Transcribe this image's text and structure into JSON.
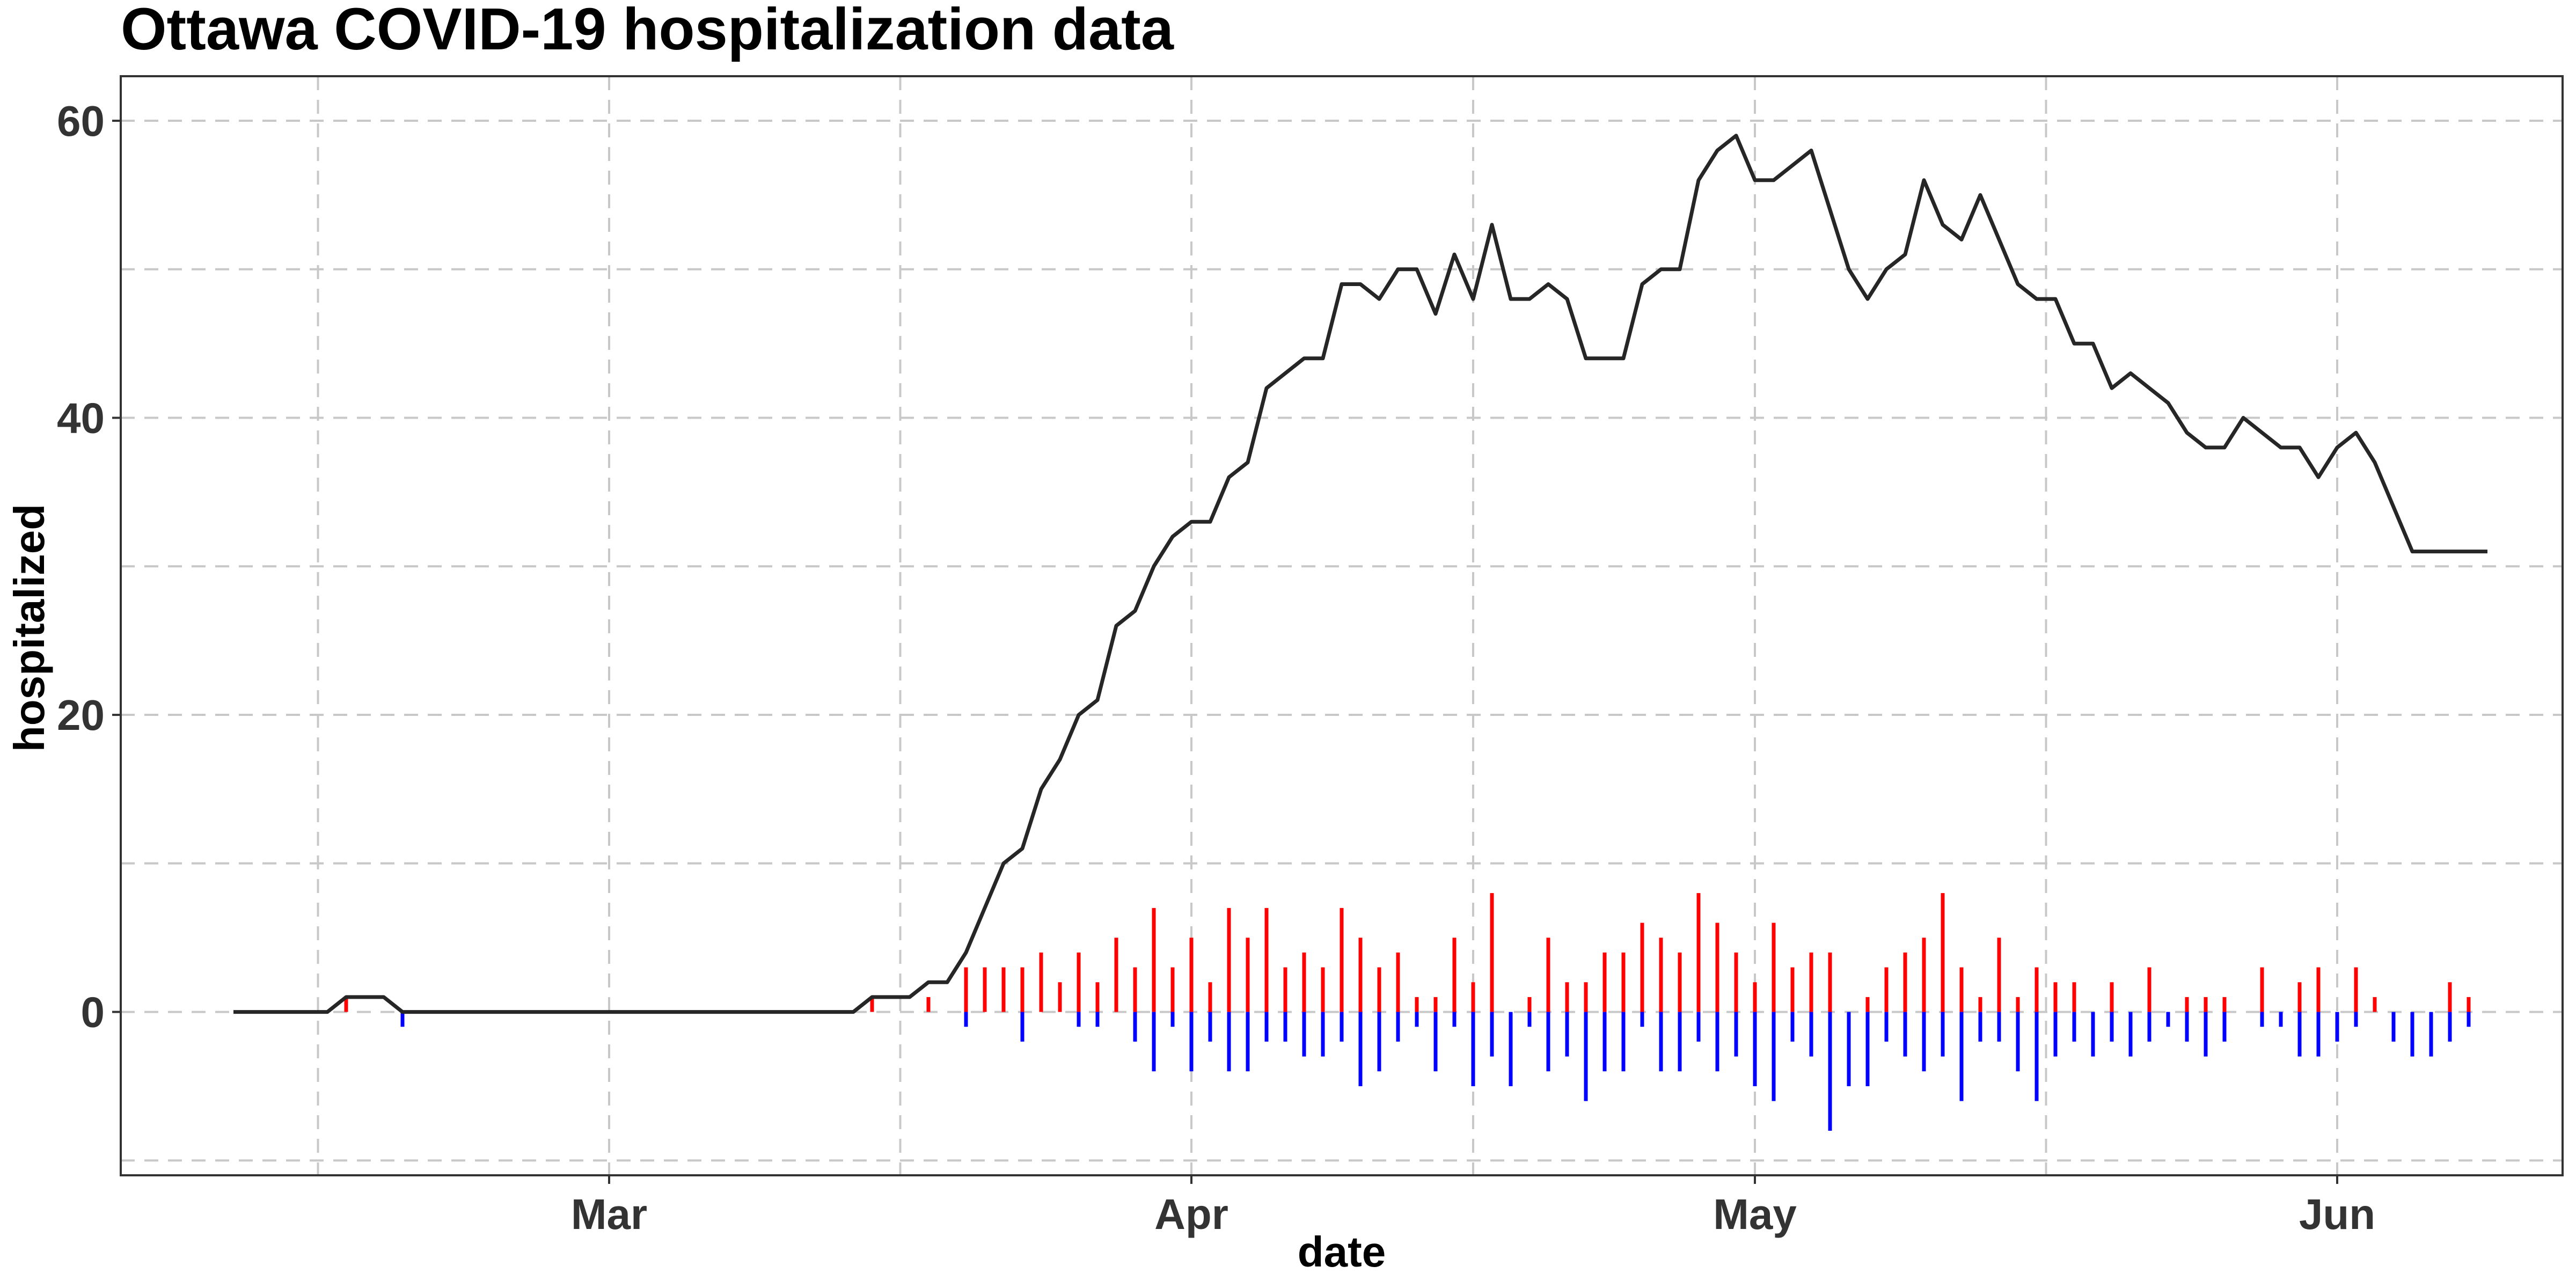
{
  "chart_data": {
    "type": "line",
    "title": "Ottawa COVID-19 hospitalization data",
    "xlabel": "date",
    "ylabel": "hospitalized",
    "x_ticks": [
      {
        "label": "Mar",
        "date": "2020-03-01"
      },
      {
        "label": "Apr",
        "date": "2020-04-01"
      },
      {
        "label": "May",
        "date": "2020-05-01"
      },
      {
        "label": "Jun",
        "date": "2020-06-01"
      }
    ],
    "y_ticks": [
      0,
      20,
      40,
      60
    ],
    "xlim": [
      "2020-02-04",
      "2020-06-13"
    ],
    "ylim": [
      -11,
      63
    ],
    "grid": true,
    "legend": "none",
    "colors": {
      "hospitalized": "#262626",
      "increase": "#ff0000",
      "decrease": "#0000ff",
      "grid": "#c8c8c8",
      "panel_border": "#333333"
    },
    "series": [
      {
        "role": "hospitalized",
        "points": [
          [
            "2020-02-10",
            0
          ],
          [
            "2020-02-15",
            0
          ],
          [
            "2020-02-16",
            1
          ],
          [
            "2020-02-18",
            1
          ],
          [
            "2020-02-19",
            0
          ],
          [
            "2020-03-14",
            0
          ],
          [
            "2020-03-15",
            1
          ],
          [
            "2020-03-17",
            1
          ],
          [
            "2020-03-18",
            2
          ],
          [
            "2020-03-19",
            2
          ],
          [
            "2020-03-20",
            4
          ],
          [
            "2020-03-21",
            7
          ],
          [
            "2020-03-22",
            10
          ],
          [
            "2020-03-23",
            11
          ],
          [
            "2020-03-24",
            15
          ],
          [
            "2020-03-25",
            17
          ],
          [
            "2020-03-26",
            20
          ],
          [
            "2020-03-27",
            21
          ],
          [
            "2020-03-28",
            26
          ],
          [
            "2020-03-29",
            27
          ],
          [
            "2020-03-30",
            30
          ],
          [
            "2020-03-31",
            32
          ],
          [
            "2020-04-01",
            33
          ],
          [
            "2020-04-02",
            33
          ],
          [
            "2020-04-03",
            36
          ],
          [
            "2020-04-04",
            37
          ],
          [
            "2020-04-05",
            42
          ],
          [
            "2020-04-06",
            43
          ],
          [
            "2020-04-07",
            44
          ],
          [
            "2020-04-08",
            44
          ],
          [
            "2020-04-09",
            49
          ],
          [
            "2020-04-10",
            49
          ],
          [
            "2020-04-11",
            48
          ],
          [
            "2020-04-12",
            50
          ],
          [
            "2020-04-13",
            50
          ],
          [
            "2020-04-14",
            47
          ],
          [
            "2020-04-15",
            51
          ],
          [
            "2020-04-16",
            48
          ],
          [
            "2020-04-17",
            53
          ],
          [
            "2020-04-18",
            48
          ],
          [
            "2020-04-19",
            48
          ],
          [
            "2020-04-20",
            49
          ],
          [
            "2020-04-21",
            48
          ],
          [
            "2020-04-22",
            44
          ],
          [
            "2020-04-23",
            44
          ],
          [
            "2020-04-24",
            44
          ],
          [
            "2020-04-25",
            49
          ],
          [
            "2020-04-26",
            50
          ],
          [
            "2020-04-27",
            50
          ],
          [
            "2020-04-28",
            56
          ],
          [
            "2020-04-29",
            58
          ],
          [
            "2020-04-30",
            59
          ],
          [
            "2020-05-01",
            56
          ],
          [
            "2020-05-02",
            56
          ],
          [
            "2020-05-03",
            57
          ],
          [
            "2020-05-04",
            58
          ],
          [
            "2020-05-05",
            54
          ],
          [
            "2020-05-06",
            50
          ],
          [
            "2020-05-07",
            48
          ],
          [
            "2020-05-08",
            50
          ],
          [
            "2020-05-09",
            51
          ],
          [
            "2020-05-10",
            56
          ],
          [
            "2020-05-11",
            53
          ],
          [
            "2020-05-12",
            52
          ],
          [
            "2020-05-13",
            55
          ],
          [
            "2020-05-14",
            52
          ],
          [
            "2020-05-15",
            49
          ],
          [
            "2020-05-16",
            48
          ],
          [
            "2020-05-17",
            48
          ],
          [
            "2020-05-18",
            45
          ],
          [
            "2020-05-19",
            45
          ],
          [
            "2020-05-20",
            42
          ],
          [
            "2020-05-21",
            43
          ],
          [
            "2020-05-22",
            42
          ],
          [
            "2020-05-23",
            41
          ],
          [
            "2020-05-24",
            39
          ],
          [
            "2020-05-25",
            38
          ],
          [
            "2020-05-26",
            38
          ],
          [
            "2020-05-27",
            40
          ],
          [
            "2020-05-28",
            39
          ],
          [
            "2020-05-29",
            38
          ],
          [
            "2020-05-30",
            38
          ],
          [
            "2020-05-31",
            36
          ],
          [
            "2020-06-01",
            38
          ],
          [
            "2020-06-02",
            39
          ],
          [
            "2020-06-03",
            37
          ],
          [
            "2020-06-04",
            34
          ],
          [
            "2020-06-05",
            31
          ],
          [
            "2020-06-06",
            31
          ],
          [
            "2020-06-07",
            31
          ],
          [
            "2020-06-08",
            31
          ],
          [
            "2020-06-09",
            31
          ]
        ]
      },
      {
        "role": "increase",
        "bars": [
          [
            "2020-02-16",
            1
          ],
          [
            "2020-03-15",
            1
          ],
          [
            "2020-03-18",
            1
          ],
          [
            "2020-03-20",
            3
          ],
          [
            "2020-03-21",
            3
          ],
          [
            "2020-03-22",
            3
          ],
          [
            "2020-03-23",
            3
          ],
          [
            "2020-03-24",
            4
          ],
          [
            "2020-03-25",
            2
          ],
          [
            "2020-03-26",
            4
          ],
          [
            "2020-03-27",
            2
          ],
          [
            "2020-03-28",
            5
          ],
          [
            "2020-03-29",
            3
          ],
          [
            "2020-03-30",
            7
          ],
          [
            "2020-03-31",
            3
          ],
          [
            "2020-04-01",
            5
          ],
          [
            "2020-04-02",
            2
          ],
          [
            "2020-04-03",
            7
          ],
          [
            "2020-04-04",
            5
          ],
          [
            "2020-04-05",
            7
          ],
          [
            "2020-04-06",
            3
          ],
          [
            "2020-04-07",
            4
          ],
          [
            "2020-04-08",
            3
          ],
          [
            "2020-04-09",
            7
          ],
          [
            "2020-04-10",
            5
          ],
          [
            "2020-04-11",
            3
          ],
          [
            "2020-04-12",
            4
          ],
          [
            "2020-04-13",
            1
          ],
          [
            "2020-04-14",
            1
          ],
          [
            "2020-04-15",
            5
          ],
          [
            "2020-04-16",
            2
          ],
          [
            "2020-04-17",
            8
          ],
          [
            "2020-04-19",
            1
          ],
          [
            "2020-04-20",
            5
          ],
          [
            "2020-04-21",
            2
          ],
          [
            "2020-04-22",
            2
          ],
          [
            "2020-04-23",
            4
          ],
          [
            "2020-04-24",
            4
          ],
          [
            "2020-04-25",
            6
          ],
          [
            "2020-04-26",
            5
          ],
          [
            "2020-04-27",
            4
          ],
          [
            "2020-04-28",
            8
          ],
          [
            "2020-04-29",
            6
          ],
          [
            "2020-04-30",
            4
          ],
          [
            "2020-05-01",
            2
          ],
          [
            "2020-05-02",
            6
          ],
          [
            "2020-05-03",
            3
          ],
          [
            "2020-05-04",
            4
          ],
          [
            "2020-05-05",
            4
          ],
          [
            "2020-05-07",
            1
          ],
          [
            "2020-05-08",
            3
          ],
          [
            "2020-05-09",
            4
          ],
          [
            "2020-05-10",
            5
          ],
          [
            "2020-05-11",
            8
          ],
          [
            "2020-05-12",
            3
          ],
          [
            "2020-05-13",
            1
          ],
          [
            "2020-05-14",
            5
          ],
          [
            "2020-05-15",
            1
          ],
          [
            "2020-05-16",
            3
          ],
          [
            "2020-05-17",
            2
          ],
          [
            "2020-05-18",
            2
          ],
          [
            "2020-05-20",
            2
          ],
          [
            "2020-05-22",
            3
          ],
          [
            "2020-05-24",
            1
          ],
          [
            "2020-05-25",
            1
          ],
          [
            "2020-05-26",
            1
          ],
          [
            "2020-05-28",
            3
          ],
          [
            "2020-05-30",
            2
          ],
          [
            "2020-05-31",
            3
          ],
          [
            "2020-06-02",
            3
          ],
          [
            "2020-06-03",
            1
          ],
          [
            "2020-06-07",
            2
          ],
          [
            "2020-06-08",
            1
          ]
        ]
      },
      {
        "role": "decrease",
        "bars": [
          [
            "2020-02-19",
            -1
          ],
          [
            "2020-03-20",
            -1
          ],
          [
            "2020-03-23",
            -2
          ],
          [
            "2020-03-26",
            -1
          ],
          [
            "2020-03-27",
            -1
          ],
          [
            "2020-03-29",
            -2
          ],
          [
            "2020-03-30",
            -4
          ],
          [
            "2020-03-31",
            -1
          ],
          [
            "2020-04-01",
            -4
          ],
          [
            "2020-04-02",
            -2
          ],
          [
            "2020-04-03",
            -4
          ],
          [
            "2020-04-04",
            -4
          ],
          [
            "2020-04-05",
            -2
          ],
          [
            "2020-04-06",
            -2
          ],
          [
            "2020-04-07",
            -3
          ],
          [
            "2020-04-08",
            -3
          ],
          [
            "2020-04-09",
            -2
          ],
          [
            "2020-04-10",
            -5
          ],
          [
            "2020-04-11",
            -4
          ],
          [
            "2020-04-12",
            -2
          ],
          [
            "2020-04-13",
            -1
          ],
          [
            "2020-04-14",
            -4
          ],
          [
            "2020-04-15",
            -1
          ],
          [
            "2020-04-16",
            -5
          ],
          [
            "2020-04-17",
            -3
          ],
          [
            "2020-04-18",
            -5
          ],
          [
            "2020-04-19",
            -1
          ],
          [
            "2020-04-20",
            -4
          ],
          [
            "2020-04-21",
            -3
          ],
          [
            "2020-04-22",
            -6
          ],
          [
            "2020-04-23",
            -4
          ],
          [
            "2020-04-24",
            -4
          ],
          [
            "2020-04-25",
            -1
          ],
          [
            "2020-04-26",
            -4
          ],
          [
            "2020-04-27",
            -4
          ],
          [
            "2020-04-28",
            -2
          ],
          [
            "2020-04-29",
            -4
          ],
          [
            "2020-04-30",
            -3
          ],
          [
            "2020-05-01",
            -5
          ],
          [
            "2020-05-02",
            -6
          ],
          [
            "2020-05-03",
            -2
          ],
          [
            "2020-05-04",
            -3
          ],
          [
            "2020-05-05",
            -8
          ],
          [
            "2020-05-06",
            -5
          ],
          [
            "2020-05-07",
            -5
          ],
          [
            "2020-05-08",
            -2
          ],
          [
            "2020-05-09",
            -3
          ],
          [
            "2020-05-10",
            -4
          ],
          [
            "2020-05-11",
            -3
          ],
          [
            "2020-05-12",
            -6
          ],
          [
            "2020-05-13",
            -2
          ],
          [
            "2020-05-14",
            -2
          ],
          [
            "2020-05-15",
            -4
          ],
          [
            "2020-05-16",
            -6
          ],
          [
            "2020-05-17",
            -3
          ],
          [
            "2020-05-18",
            -2
          ],
          [
            "2020-05-19",
            -3
          ],
          [
            "2020-05-20",
            -2
          ],
          [
            "2020-05-21",
            -3
          ],
          [
            "2020-05-22",
            -2
          ],
          [
            "2020-05-23",
            -1
          ],
          [
            "2020-05-24",
            -2
          ],
          [
            "2020-05-25",
            -3
          ],
          [
            "2020-05-26",
            -2
          ],
          [
            "2020-05-28",
            -1
          ],
          [
            "2020-05-29",
            -1
          ],
          [
            "2020-05-30",
            -3
          ],
          [
            "2020-05-31",
            -3
          ],
          [
            "2020-06-01",
            -2
          ],
          [
            "2020-06-02",
            -1
          ],
          [
            "2020-06-04",
            -2
          ],
          [
            "2020-06-05",
            -3
          ],
          [
            "2020-06-06",
            -3
          ],
          [
            "2020-06-07",
            -2
          ],
          [
            "2020-06-08",
            -1
          ]
        ]
      }
    ]
  }
}
